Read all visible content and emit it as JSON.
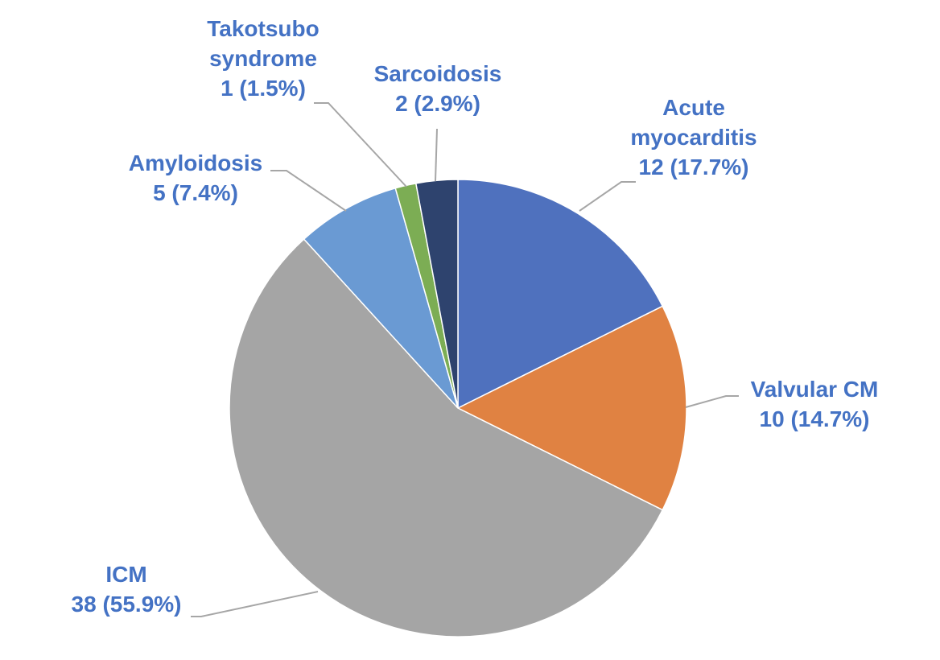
{
  "chart_data": {
    "type": "pie",
    "start_angle_deg": 0,
    "direction": "clockwise",
    "label_color": "#4472c4",
    "leader_color": "#a6a6a6",
    "slices": [
      {
        "label": "Acute myocarditis",
        "label_lines": [
          "Acute",
          "myocarditis"
        ],
        "count": 12,
        "percent": "17.7%",
        "color": "#4f71be"
      },
      {
        "label": "Valvular CM",
        "label_lines": [
          "Valvular CM"
        ],
        "count": 10,
        "percent": "14.7%",
        "color": "#e08242"
      },
      {
        "label": "ICM",
        "label_lines": [
          "ICM"
        ],
        "count": 38,
        "percent": "55.9%",
        "color": "#a5a5a5"
      },
      {
        "label": "Amyloidosis",
        "label_lines": [
          "Amyloidosis"
        ],
        "count": 5,
        "percent": "7.4%",
        "color": "#6a9ad3"
      },
      {
        "label": "Takotsubo syndrome",
        "label_lines": [
          "Takotsubo",
          "syndrome"
        ],
        "count": 1,
        "percent": "1.5%",
        "color": "#7cad54"
      },
      {
        "label": "Sarcoidosis",
        "label_lines": [
          "Sarcoidosis"
        ],
        "count": 2,
        "percent": "2.9%",
        "color": "#2e436e"
      }
    ]
  }
}
